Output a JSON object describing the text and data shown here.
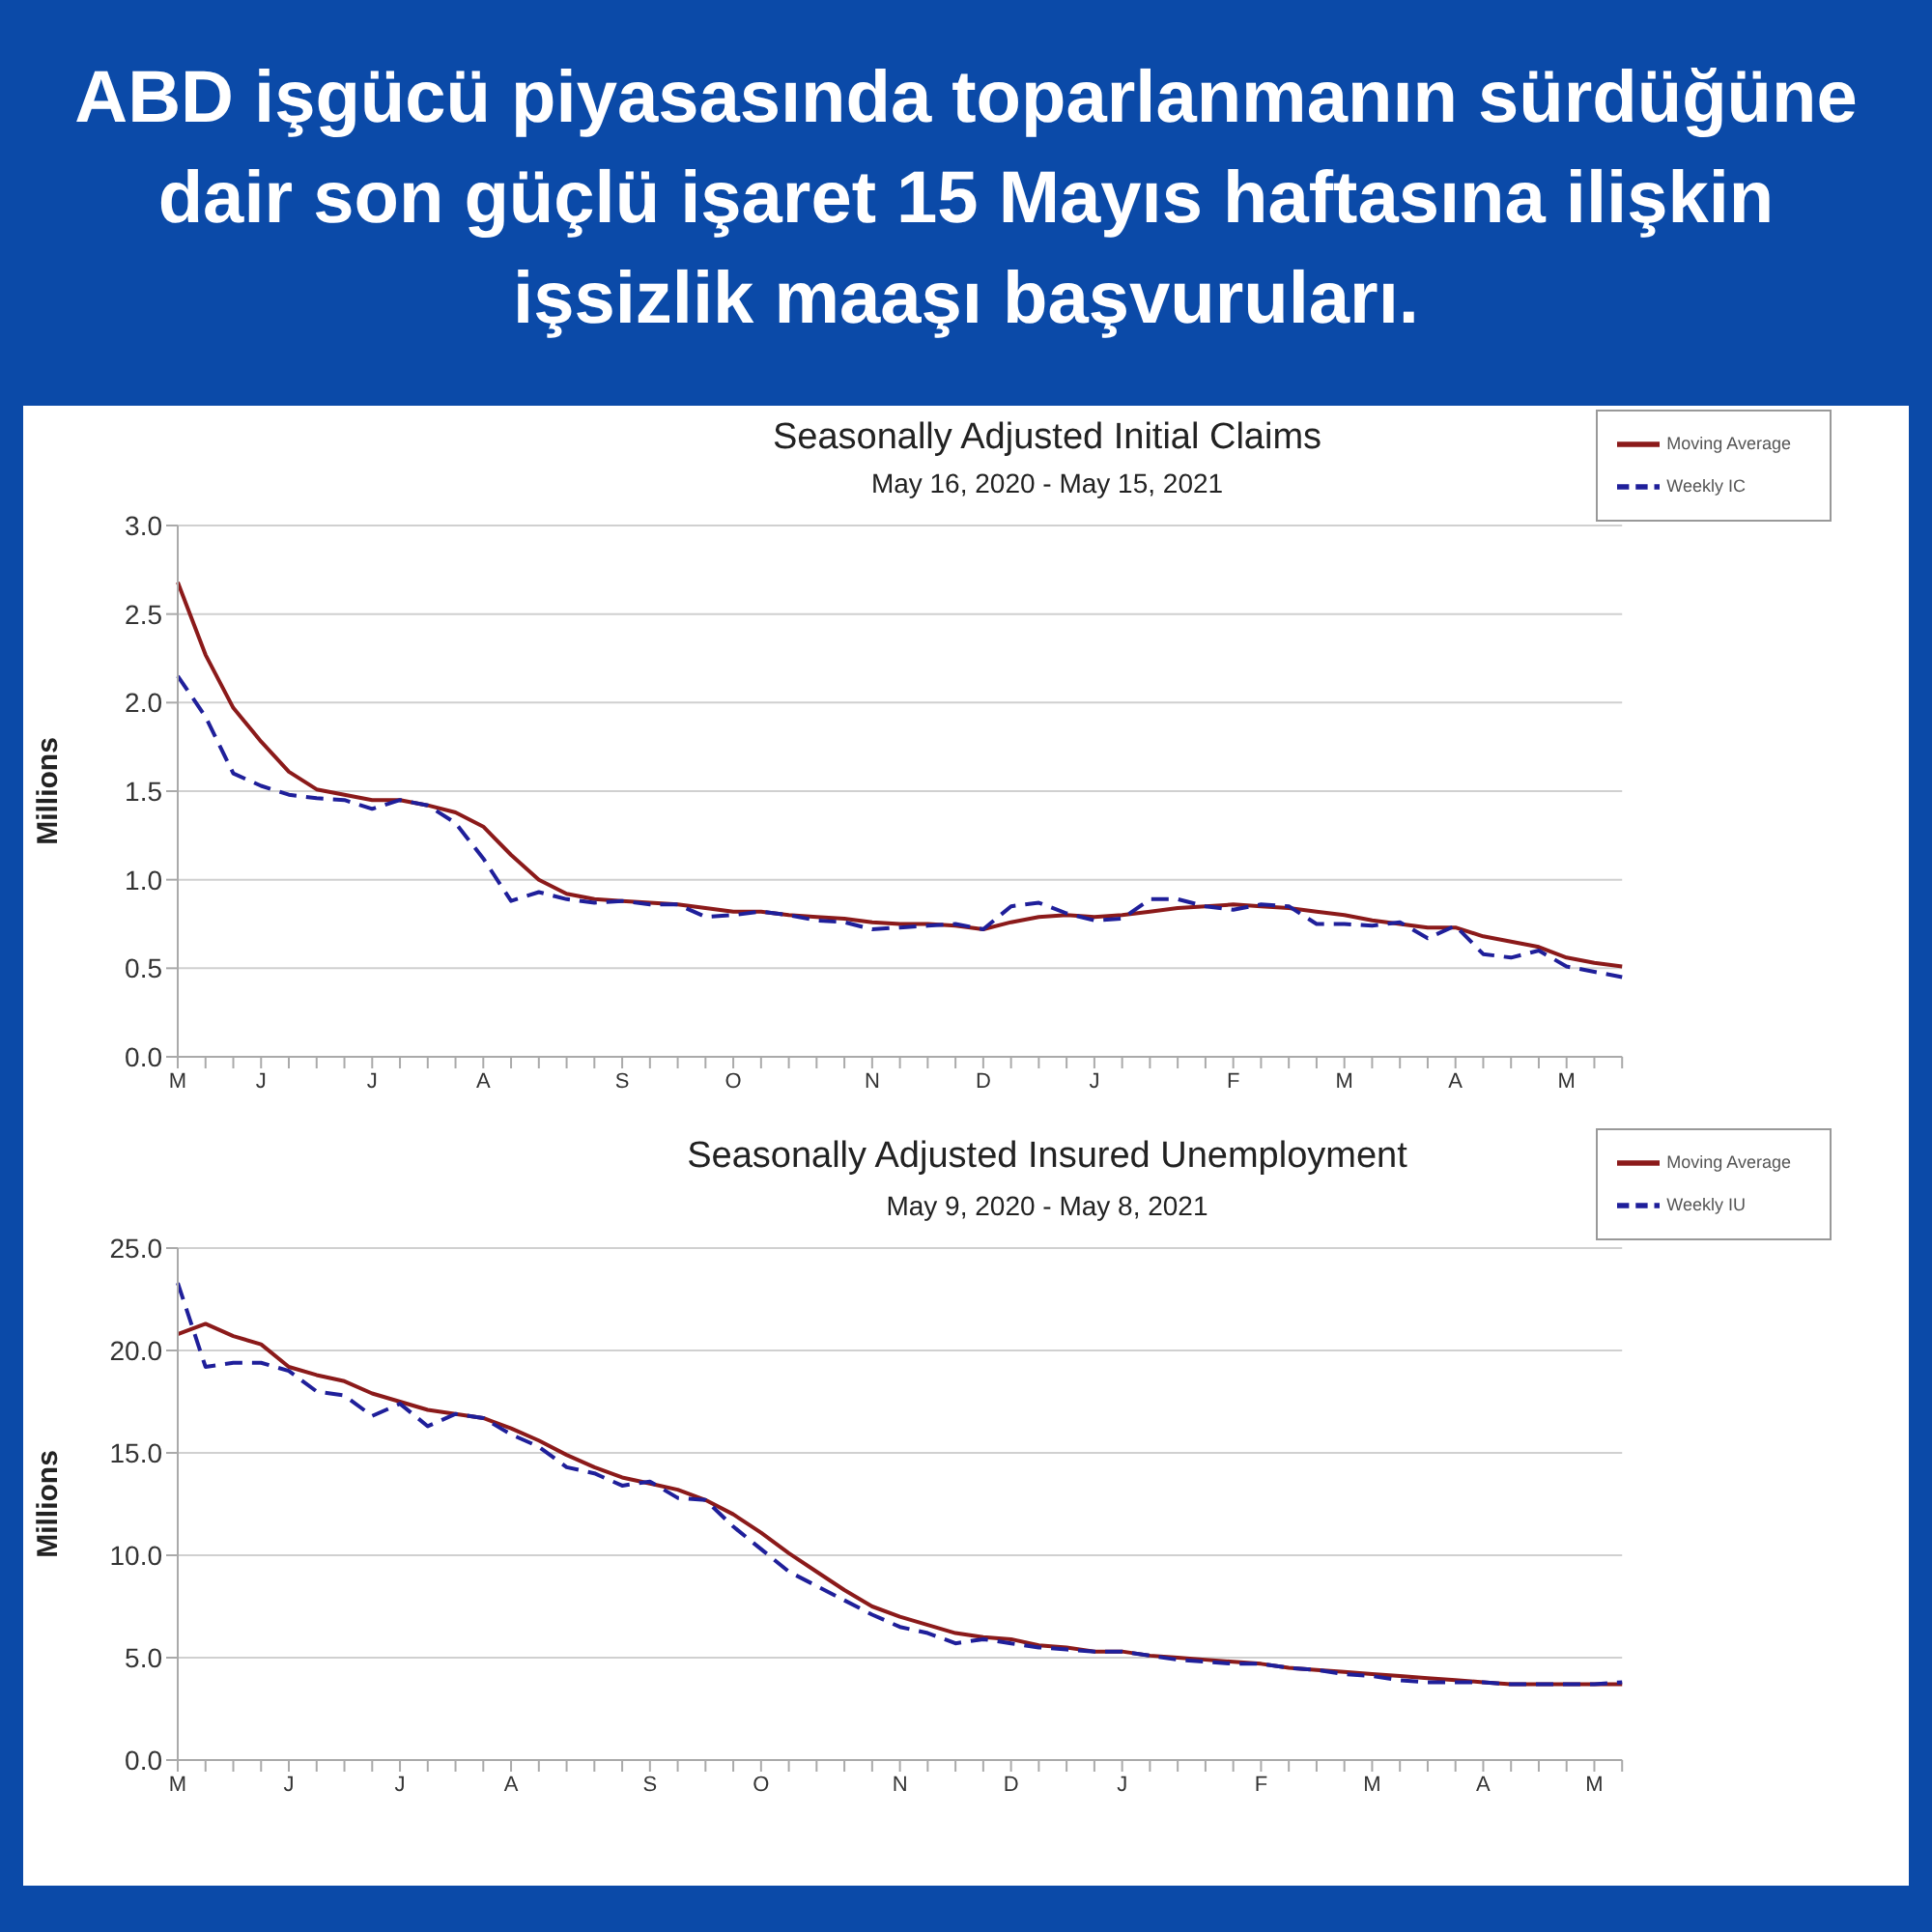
{
  "chart_data": [
    {
      "type": "line",
      "title": "Seasonally Adjusted Initial Claims",
      "subtitle": "May 16, 2020 - May 15, 2021",
      "ylabel": "Millions",
      "annotations": [
        "ABD işgücü piyasasında toparlanmanın sürdüğüne dair son güçlü işaret 15 Mayıs haftasına ilişkin işsizlik maaşı başvuruları."
      ],
      "categories": [
        "M",
        null,
        null,
        "J",
        null,
        null,
        null,
        "J",
        null,
        null,
        null,
        "A",
        null,
        null,
        null,
        null,
        "S",
        null,
        null,
        null,
        "O",
        null,
        null,
        null,
        null,
        "N",
        null,
        null,
        null,
        "D",
        null,
        null,
        null,
        "J",
        null,
        null,
        null,
        null,
        "F",
        null,
        null,
        null,
        "M",
        null,
        null,
        null,
        "A",
        null,
        null,
        null,
        "M",
        null,
        null
      ],
      "series": [
        {
          "name": "Moving Average",
          "color": "#8b1a1a",
          "line_style": "solid",
          "values": [
            2.68,
            2.27,
            1.97,
            1.78,
            1.61,
            1.51,
            1.48,
            1.45,
            1.45,
            1.42,
            1.38,
            1.3,
            1.14,
            1.0,
            0.92,
            0.89,
            0.88,
            0.87,
            0.86,
            0.84,
            0.82,
            0.82,
            0.8,
            0.79,
            0.78,
            0.76,
            0.75,
            0.75,
            0.74,
            0.72,
            0.76,
            0.79,
            0.8,
            0.79,
            0.8,
            0.82,
            0.84,
            0.85,
            0.86,
            0.85,
            0.84,
            0.82,
            0.8,
            0.77,
            0.75,
            0.73,
            0.73,
            0.68,
            0.65,
            0.62,
            0.56,
            0.53,
            0.51
          ]
        },
        {
          "name": "Weekly IC",
          "color": "#1f1f9a",
          "line_style": "dashed",
          "values": [
            2.15,
            1.92,
            1.6,
            1.53,
            1.48,
            1.46,
            1.45,
            1.4,
            1.45,
            1.42,
            1.32,
            1.12,
            0.88,
            0.93,
            0.89,
            0.87,
            0.88,
            0.86,
            0.86,
            0.79,
            0.8,
            0.82,
            0.8,
            0.77,
            0.76,
            0.72,
            0.73,
            0.74,
            0.75,
            0.72,
            0.85,
            0.87,
            0.81,
            0.77,
            0.78,
            0.89,
            0.89,
            0.85,
            0.83,
            0.86,
            0.85,
            0.75,
            0.75,
            0.74,
            0.76,
            0.67,
            0.74,
            0.58,
            0.56,
            0.6,
            0.51,
            0.48,
            0.45
          ]
        }
      ],
      "ylim": [
        0,
        3
      ],
      "yticks": [
        {
          "value": 0,
          "label": "0.0"
        },
        {
          "value": 0.5,
          "label": "0.5"
        },
        {
          "value": 1,
          "label": "1.0"
        },
        {
          "value": 1.5,
          "label": "1.5"
        },
        {
          "value": 2,
          "label": "2.0"
        },
        {
          "value": 2.5,
          "label": "2.5"
        },
        {
          "value": 3,
          "label": "3.0"
        }
      ],
      "grid": "y",
      "legend": "top right"
    },
    {
      "type": "line",
      "title": "Seasonally Adjusted Insured Unemployment",
      "subtitle": "May 9, 2020 - May 8, 2021",
      "ylabel": "Millions",
      "categories": [
        "M",
        null,
        null,
        null,
        "J",
        null,
        null,
        null,
        "J",
        null,
        null,
        null,
        "A",
        null,
        null,
        null,
        null,
        "S",
        null,
        null,
        null,
        "O",
        null,
        null,
        null,
        null,
        "N",
        null,
        null,
        null,
        "D",
        null,
        null,
        null,
        "J",
        null,
        null,
        null,
        null,
        "F",
        null,
        null,
        null,
        "M",
        null,
        null,
        null,
        "A",
        null,
        null,
        null,
        "M",
        null
      ],
      "series": [
        {
          "name": "Moving Average",
          "color": "#8b1a1a",
          "line_style": "solid",
          "values": [
            20.8,
            21.3,
            20.7,
            20.3,
            19.2,
            18.8,
            18.5,
            17.9,
            17.5,
            17.1,
            16.9,
            16.7,
            16.2,
            15.6,
            14.9,
            14.3,
            13.8,
            13.5,
            13.2,
            12.7,
            12.0,
            11.1,
            10.1,
            9.2,
            8.3,
            7.5,
            7.0,
            6.6,
            6.2,
            6.0,
            5.9,
            5.6,
            5.5,
            5.3,
            5.3,
            5.1,
            5.0,
            4.9,
            4.8,
            4.7,
            4.5,
            4.4,
            4.3,
            4.2,
            4.1,
            4.0,
            3.9,
            3.8,
            3.7,
            3.7,
            3.7,
            3.7,
            3.7
          ]
        },
        {
          "name": "Weekly IU",
          "color": "#1f1f9a",
          "line_style": "dashed",
          "values": [
            23.3,
            19.2,
            19.4,
            19.4,
            19.0,
            18.0,
            17.8,
            16.8,
            17.4,
            16.3,
            16.9,
            16.7,
            15.9,
            15.3,
            14.3,
            14.0,
            13.4,
            13.6,
            12.8,
            12.7,
            11.4,
            10.3,
            9.2,
            8.5,
            7.8,
            7.1,
            6.5,
            6.2,
            5.7,
            5.9,
            5.7,
            5.5,
            5.4,
            5.3,
            5.3,
            5.1,
            4.9,
            4.8,
            4.7,
            4.7,
            4.5,
            4.4,
            4.2,
            4.1,
            3.9,
            3.8,
            3.8,
            3.8,
            3.7,
            3.7,
            3.7,
            3.7,
            3.8
          ]
        }
      ],
      "ylim": [
        0,
        25
      ],
      "yticks": [
        {
          "value": 0,
          "label": "0.0"
        },
        {
          "value": 5,
          "label": "5.0"
        },
        {
          "value": 10,
          "label": "10.0"
        },
        {
          "value": 15,
          "label": "15.0"
        },
        {
          "value": 20,
          "label": "20.0"
        },
        {
          "value": 25,
          "label": "25.0"
        }
      ],
      "grid": "y",
      "legend": "top right"
    }
  ]
}
